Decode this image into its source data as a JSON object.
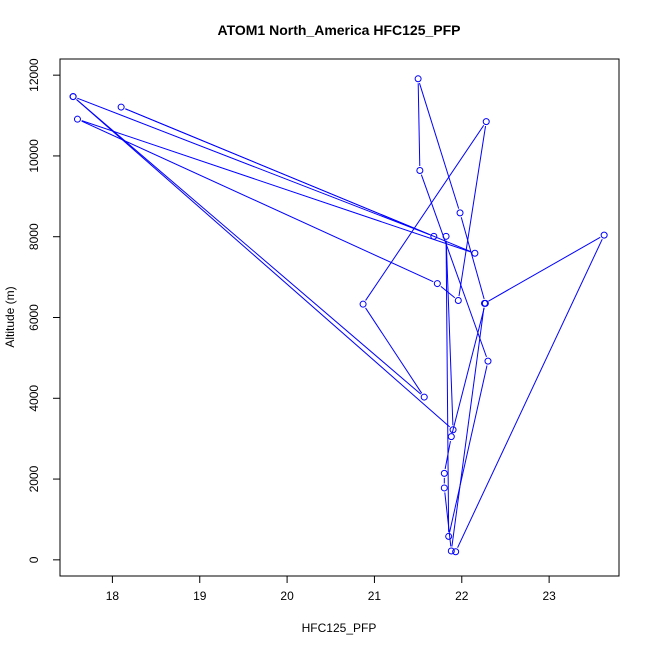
{
  "colors": {
    "series": "#0000ff",
    "axis": "#000000",
    "background": "#ffffff"
  },
  "chart_data": {
    "type": "line",
    "markers": "open-circle",
    "title": "ATOM1 North_America HFC125_PFP",
    "xlabel": "HFC125_PFP",
    "ylabel": "Altitude (m)",
    "xlim": [
      17.4,
      23.8
    ],
    "ylim": [
      -400,
      12400
    ],
    "xticks": [
      18,
      19,
      20,
      21,
      22,
      23
    ],
    "yticks": [
      0,
      2000,
      4000,
      6000,
      8000,
      10000,
      12000
    ],
    "grid": false,
    "series": [
      {
        "x": [
          17.55,
          21.57,
          20.87,
          22.28,
          21.96,
          21.72,
          17.6,
          22.15,
          18.1,
          21.68,
          17.55,
          21.9,
          21.82,
          21.85,
          22.3,
          21.52,
          21.5,
          21.98,
          22.27,
          21.88,
          21.8,
          21.8,
          21.88,
          22.26,
          23.63,
          21.93
        ],
        "y": [
          11470,
          4030,
          6330,
          10850,
          6420,
          6840,
          10910,
          7590,
          11210,
          8010,
          11470,
          3220,
          8010,
          580,
          4920,
          9640,
          11910,
          8590,
          6350,
          3050,
          2140,
          1780,
          220,
          6350,
          8040,
          200
        ]
      }
    ]
  }
}
